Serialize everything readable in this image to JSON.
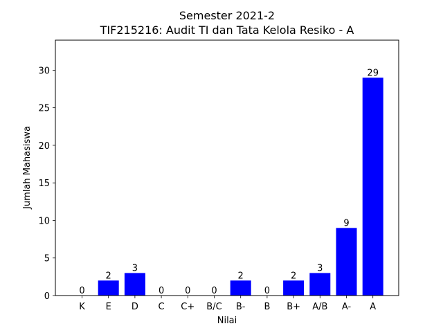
{
  "chart_data": {
    "type": "bar",
    "title_line1": "Semester 2021-2",
    "title_line2": "TIF215216: Audit TI dan Tata Kelola Resiko - A",
    "xlabel": "Nilai",
    "ylabel": "Jumlah Mahasiswa",
    "categories": [
      "K",
      "E",
      "D",
      "C",
      "C+",
      "B/C",
      "B-",
      "B",
      "B+",
      "A/B",
      "A-",
      "A"
    ],
    "values": [
      0,
      2,
      3,
      0,
      0,
      0,
      2,
      0,
      2,
      3,
      9,
      29
    ],
    "ylim": [
      0,
      34
    ],
    "yticks": [
      0,
      5,
      10,
      15,
      20,
      25,
      30
    ],
    "bar_color": "#0000ff",
    "grid": false,
    "data_labels": true
  }
}
